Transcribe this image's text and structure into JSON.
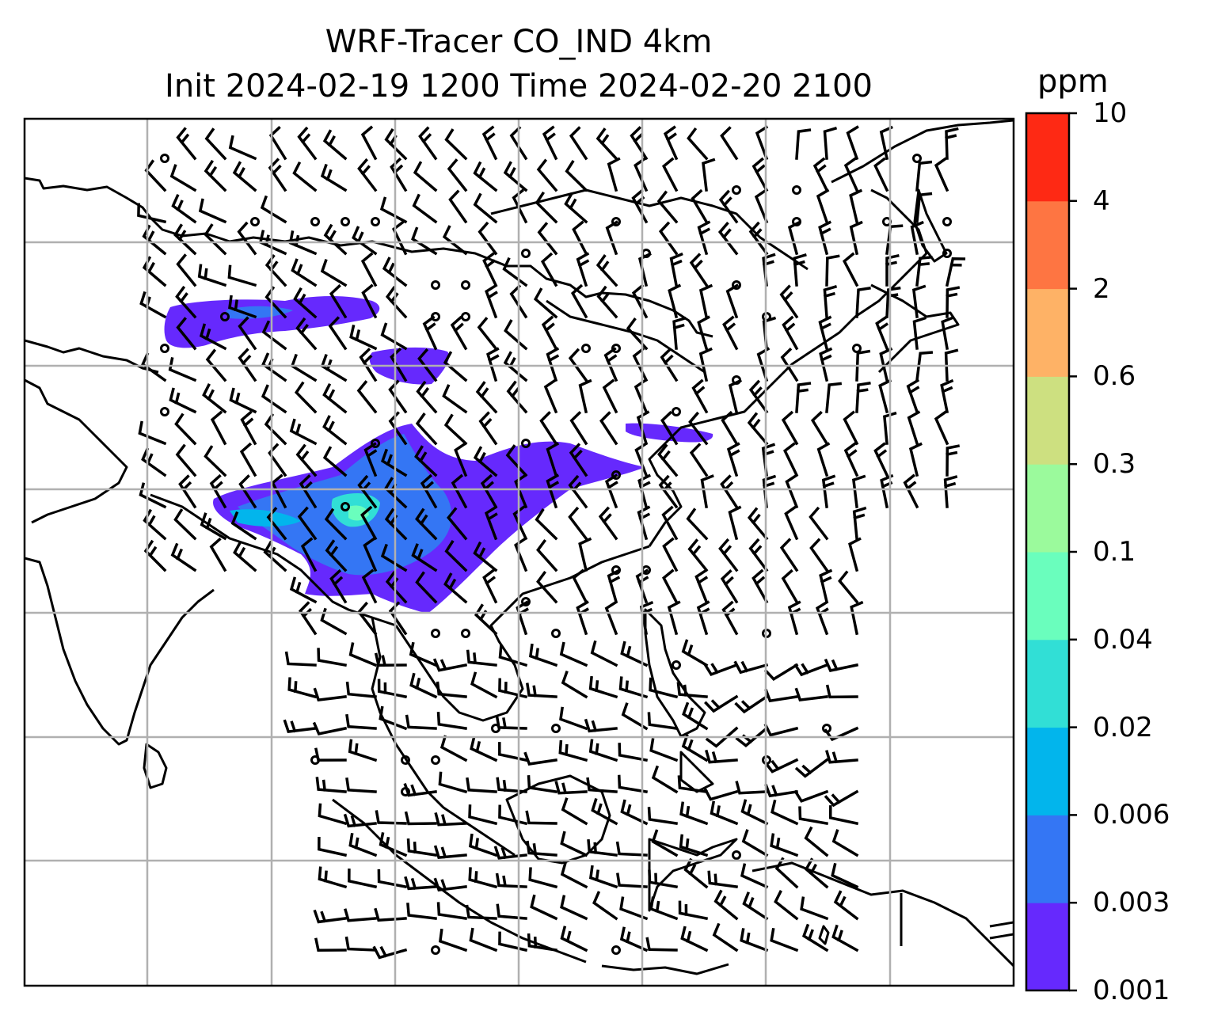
{
  "title": {
    "line1": "WRF-Tracer CO_IND 4km",
    "line2": "Init 2024-02-19 1200 Time 2024-02-20 2100"
  },
  "colorbar": {
    "unit": "ppm",
    "levels": [
      "0.001",
      "0.003",
      "0.006",
      "0.02",
      "0.04",
      "0.1",
      "0.3",
      "0.6",
      "2",
      "4",
      "10"
    ],
    "colors": [
      "#6629fd",
      "#3476f4",
      "#02b5ec",
      "#31dfd6",
      "#6afebd",
      "#9bfa9c",
      "#cde080",
      "#feb266",
      "#fe7542",
      "#fe2914"
    ]
  },
  "map": {
    "gridlines": true,
    "wind_barbs": true,
    "coastlines": true
  }
}
